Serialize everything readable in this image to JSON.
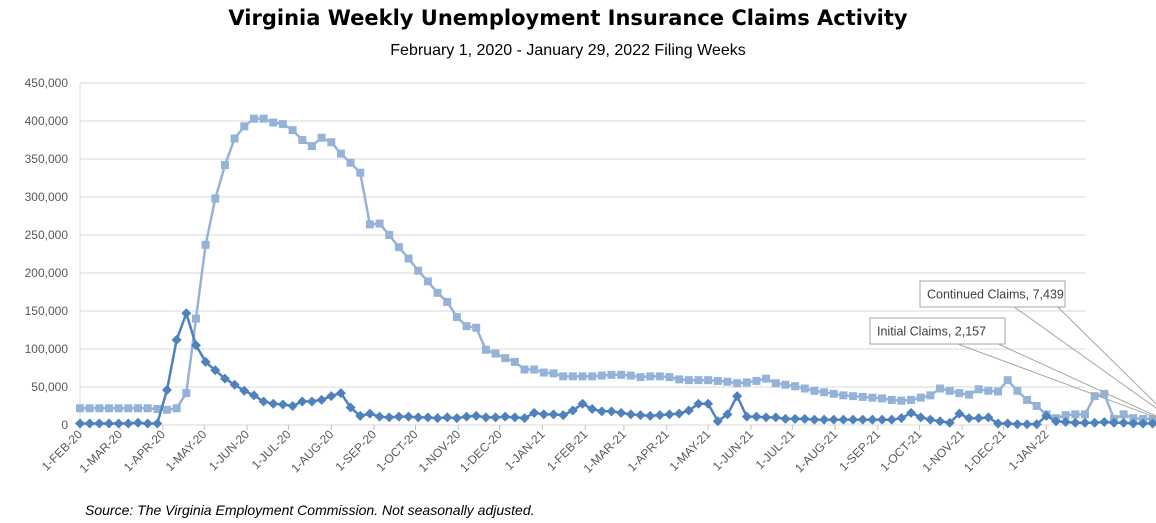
{
  "chart_data": {
    "type": "line",
    "title": "Virginia Weekly Unemployment Insurance Claims Activity",
    "subtitle": "February 1, 2020 - January 29, 2022 Filing Weeks",
    "source": "Source: The Virginia Employment Commission. Not seasonally adjusted.",
    "ylim": [
      0,
      450000
    ],
    "yticks": [
      "0",
      "50,000",
      "100,000",
      "150,000",
      "200,000",
      "250,000",
      "300,000",
      "350,000",
      "400,000",
      "450,000"
    ],
    "x_range": [
      "2020-02-01",
      "2022-01-29"
    ],
    "x_ticks": [
      {
        "date": "2020-02-01",
        "label": "1-FEB-20"
      },
      {
        "date": "2020-03-01",
        "label": "1-MAR-20"
      },
      {
        "date": "2020-04-01",
        "label": "1-APR-20"
      },
      {
        "date": "2020-05-01",
        "label": "1-MAY-20"
      },
      {
        "date": "2020-06-01",
        "label": "1-JUN-20"
      },
      {
        "date": "2020-07-01",
        "label": "1-JUL-20"
      },
      {
        "date": "2020-08-01",
        "label": "1-AUG-20"
      },
      {
        "date": "2020-09-01",
        "label": "1-SEP-20"
      },
      {
        "date": "2020-10-01",
        "label": "1-OCT-20"
      },
      {
        "date": "2020-11-01",
        "label": "1-NOV-20"
      },
      {
        "date": "2020-12-01",
        "label": "1-DEC-20"
      },
      {
        "date": "2021-01-01",
        "label": "1-JAN-21"
      },
      {
        "date": "2021-02-01",
        "label": "1-FEB-21"
      },
      {
        "date": "2021-03-01",
        "label": "1-MAR-21"
      },
      {
        "date": "2021-04-01",
        "label": "1-APR-21"
      },
      {
        "date": "2021-05-01",
        "label": "1-MAY-21"
      },
      {
        "date": "2021-06-01",
        "label": "1-JUN-21"
      },
      {
        "date": "2021-07-01",
        "label": "1-JUL-21"
      },
      {
        "date": "2021-08-01",
        "label": "1-AUG-21"
      },
      {
        "date": "2021-09-01",
        "label": "1-SEP-21"
      },
      {
        "date": "2021-10-01",
        "label": "1-OCT-21"
      },
      {
        "date": "2021-11-01",
        "label": "1-NOV-21"
      },
      {
        "date": "2021-12-01",
        "label": "1-DEC-21"
      },
      {
        "date": "2022-01-01",
        "label": "1-JAN-22"
      }
    ],
    "grid": true,
    "series": [
      {
        "name": "Continued Claims",
        "color": "#95B3D7",
        "marker": "square",
        "values": [
          22000,
          22000,
          22000,
          22000,
          22000,
          22000,
          22000,
          22000,
          21000,
          20000,
          22000,
          42000,
          140000,
          237000,
          298000,
          342000,
          377000,
          393000,
          403000,
          403000,
          398000,
          396000,
          388000,
          375000,
          367000,
          378000,
          372000,
          357000,
          345000,
          332000,
          264000,
          265000,
          250000,
          234000,
          219000,
          203000,
          189000,
          174000,
          162000,
          142000,
          130000,
          128000,
          99000,
          94000,
          88000,
          83000,
          73000,
          73000,
          69000,
          68000,
          64000,
          64000,
          64000,
          64000,
          65000,
          66000,
          66000,
          65000,
          63000,
          64000,
          64000,
          63000,
          60000,
          59000,
          59000,
          59000,
          58000,
          57000,
          55000,
          56000,
          58000,
          61000,
          55000,
          53000,
          51000,
          48000,
          45000,
          43000,
          41000,
          39000,
          38000,
          37000,
          36000,
          35000,
          33000,
          32000,
          33000,
          36000,
          39000,
          48000,
          45000,
          42000,
          40000,
          47000,
          45000,
          44000,
          59000,
          45000,
          33000,
          25000,
          14000,
          9000,
          13000,
          14000,
          14000,
          38000,
          41000,
          8000,
          14000,
          9000,
          8000,
          8000,
          8000,
          7439
        ]
      },
      {
        "name": "Initial Claims",
        "color": "#4F81BD",
        "marker": "diamond",
        "values": [
          2000,
          2000,
          2000,
          2000,
          2000,
          2000,
          3000,
          2000,
          2000,
          46000,
          112000,
          147000,
          105000,
          83000,
          72000,
          61000,
          53000,
          45000,
          39000,
          31000,
          28000,
          27000,
          25000,
          31000,
          31000,
          33000,
          38000,
          42000,
          23000,
          12000,
          15000,
          11000,
          10000,
          11000,
          11000,
          10000,
          10000,
          9000,
          10000,
          9000,
          11000,
          12000,
          10000,
          10000,
          11000,
          10000,
          9000,
          16000,
          14000,
          14000,
          13000,
          19000,
          28000,
          21000,
          18000,
          18000,
          16000,
          14000,
          13000,
          12000,
          13000,
          14000,
          15000,
          19000,
          28000,
          28000,
          5000,
          14000,
          38000,
          11000,
          11000,
          10000,
          10000,
          8000,
          8000,
          8000,
          7000,
          7000,
          7000,
          7000,
          7000,
          7000,
          7000,
          7000,
          7000,
          9000,
          16000,
          10000,
          7000,
          5000,
          3000,
          15000,
          9000,
          9000,
          10000,
          2000,
          2000,
          1000,
          1000,
          1000,
          12000,
          5000,
          4000,
          3000,
          3000,
          3000,
          4000,
          3000,
          3000,
          2000,
          2000,
          2000,
          2000,
          2157
        ]
      }
    ],
    "annotations": [
      {
        "text": "Continued Claims, 7,439",
        "series": "Continued Claims"
      },
      {
        "text": "Initial Claims, 2,157",
        "series": "Initial Claims"
      }
    ]
  }
}
